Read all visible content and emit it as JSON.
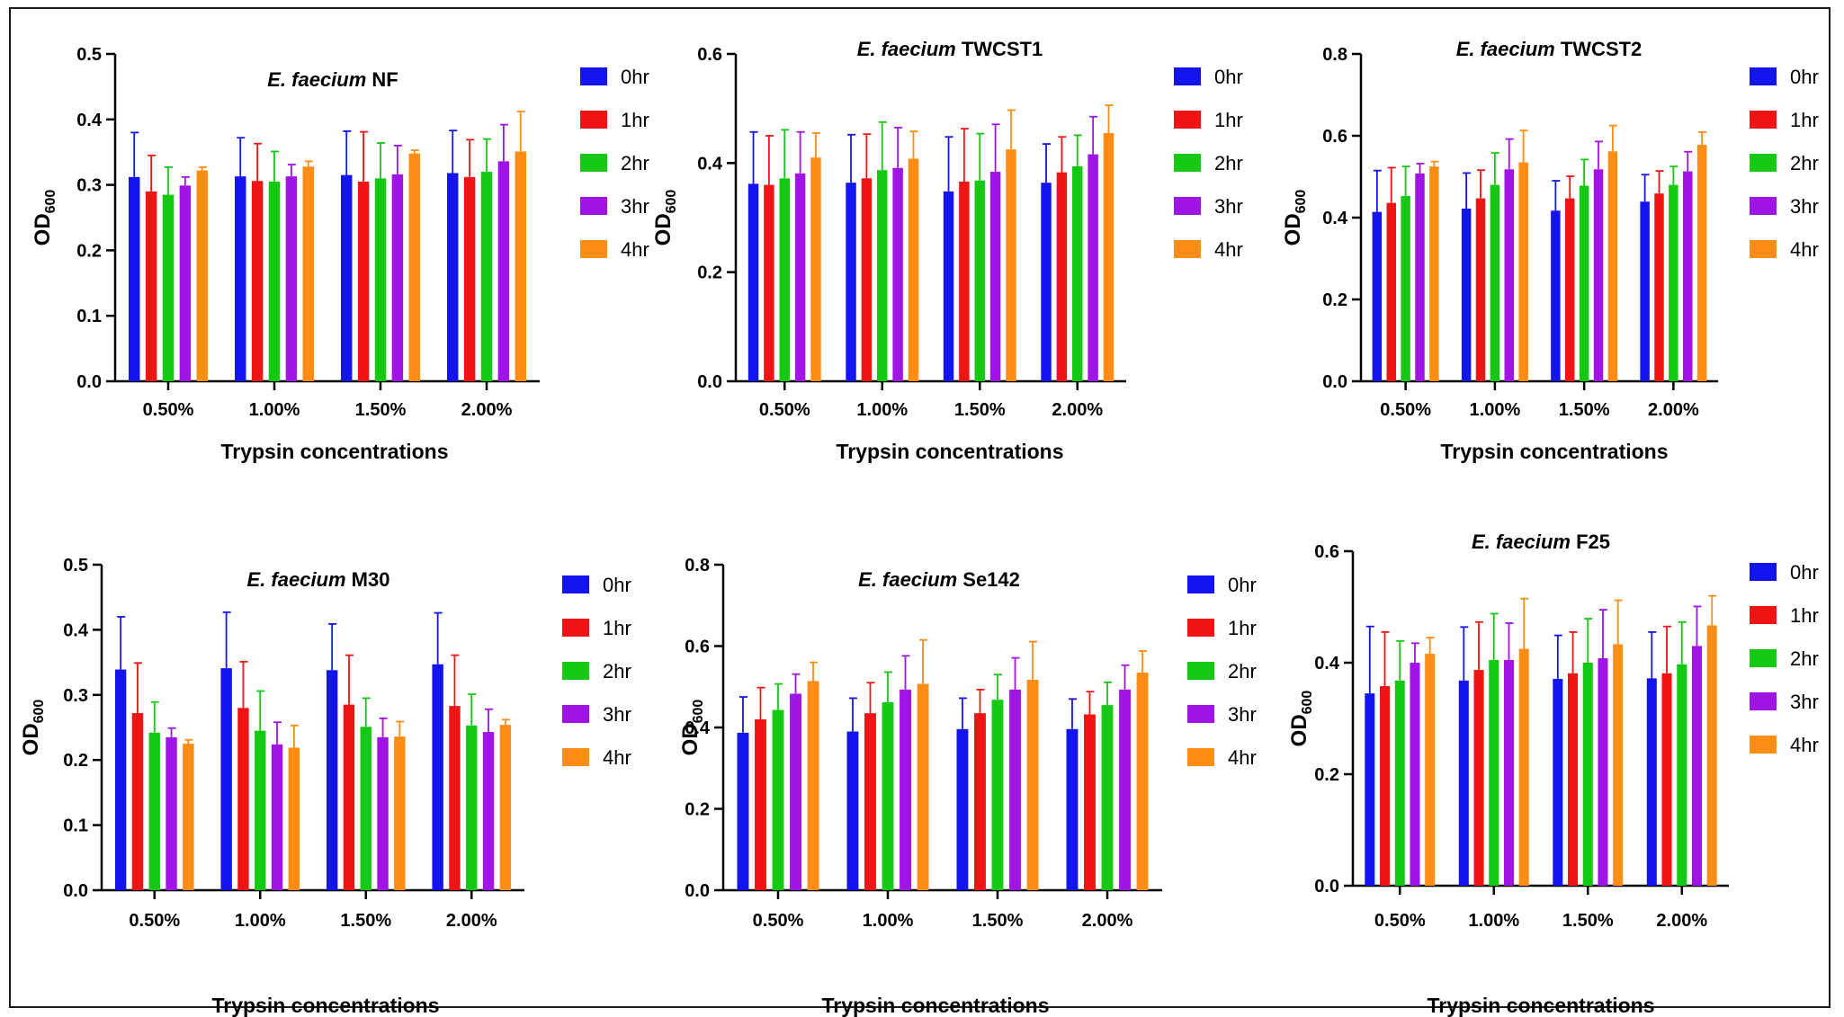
{
  "figure": {
    "type": "grouped bar chart panel grid"
  },
  "legend": {
    "items": [
      "0hr",
      "1hr",
      "2hr",
      "3hr",
      "4hr"
    ],
    "colors": [
      "#1414f0",
      "#f01414",
      "#14c814",
      "#a014e6",
      "#ff8c14"
    ]
  },
  "chart_data": [
    {
      "type": "bar",
      "title_italic": "E. faecium",
      "title_strain": "NF",
      "xlabel": "Trypsin concentrations",
      "ylabel": "OD",
      "ylabel_sub": "600",
      "ylim": [
        0,
        0.5
      ],
      "yticks": [
        "0.0",
        "0.1",
        "0.2",
        "0.3",
        "0.4",
        "0.5"
      ],
      "categories": [
        "0.50%",
        "1.00%",
        "1.50%",
        "2.00%"
      ],
      "series": [
        {
          "name": "0hr",
          "values": [
            0.312,
            0.313,
            0.315,
            0.318
          ],
          "errors": [
            0.068,
            0.059,
            0.067,
            0.065
          ]
        },
        {
          "name": "1hr",
          "values": [
            0.29,
            0.306,
            0.305,
            0.312
          ],
          "errors": [
            0.055,
            0.057,
            0.076,
            0.057
          ]
        },
        {
          "name": "2hr",
          "values": [
            0.285,
            0.305,
            0.31,
            0.32
          ],
          "errors": [
            0.042,
            0.046,
            0.054,
            0.05
          ]
        },
        {
          "name": "3hr",
          "values": [
            0.299,
            0.313,
            0.316,
            0.336
          ],
          "errors": [
            0.013,
            0.018,
            0.044,
            0.056
          ]
        },
        {
          "name": "4hr",
          "values": [
            0.322,
            0.328,
            0.348,
            0.351
          ],
          "errors": [
            0.005,
            0.008,
            0.005,
            0.061
          ]
        }
      ]
    },
    {
      "type": "bar",
      "title_italic": "E. faecium",
      "title_strain": "TWCST1",
      "xlabel": "Trypsin concentrations",
      "ylabel": "OD",
      "ylabel_sub": "600",
      "ylim": [
        0,
        0.6
      ],
      "yticks": [
        "0.0",
        "0.2",
        "0.4",
        "0.6"
      ],
      "categories": [
        "0.50%",
        "1.00%",
        "1.50%",
        "2.00%"
      ],
      "series": [
        {
          "name": "0hr",
          "values": [
            0.362,
            0.364,
            0.348,
            0.364
          ],
          "errors": [
            0.095,
            0.088,
            0.1,
            0.071
          ]
        },
        {
          "name": "1hr",
          "values": [
            0.36,
            0.372,
            0.366,
            0.383
          ],
          "errors": [
            0.09,
            0.081,
            0.097,
            0.065
          ]
        },
        {
          "name": "2hr",
          "values": [
            0.372,
            0.387,
            0.368,
            0.394
          ],
          "errors": [
            0.089,
            0.088,
            0.086,
            0.057
          ]
        },
        {
          "name": "3hr",
          "values": [
            0.381,
            0.391,
            0.384,
            0.416
          ],
          "errors": [
            0.076,
            0.074,
            0.087,
            0.069
          ]
        },
        {
          "name": "4hr",
          "values": [
            0.41,
            0.408,
            0.425,
            0.455
          ],
          "errors": [
            0.045,
            0.05,
            0.072,
            0.051
          ]
        }
      ]
    },
    {
      "type": "bar",
      "title_italic": "E. faecium",
      "title_strain": "TWCST2",
      "xlabel": "Trypsin concentrations",
      "ylabel": "OD",
      "ylabel_sub": "600",
      "ylim": [
        0,
        0.8
      ],
      "yticks": [
        "0.0",
        "0.2",
        "0.4",
        "0.6",
        "0.8"
      ],
      "categories": [
        "0.50%",
        "1.00%",
        "1.50%",
        "2.00%"
      ],
      "series": [
        {
          "name": "0hr",
          "values": [
            0.414,
            0.422,
            0.417,
            0.439
          ],
          "errors": [
            0.101,
            0.087,
            0.073,
            0.066
          ]
        },
        {
          "name": "1hr",
          "values": [
            0.436,
            0.447,
            0.447,
            0.459
          ],
          "errors": [
            0.086,
            0.069,
            0.054,
            0.055
          ]
        },
        {
          "name": "2hr",
          "values": [
            0.453,
            0.48,
            0.478,
            0.48
          ],
          "errors": [
            0.072,
            0.078,
            0.064,
            0.045
          ]
        },
        {
          "name": "3hr",
          "values": [
            0.508,
            0.518,
            0.518,
            0.513
          ],
          "errors": [
            0.024,
            0.074,
            0.068,
            0.048
          ]
        },
        {
          "name": "4hr",
          "values": [
            0.525,
            0.535,
            0.562,
            0.578
          ],
          "errors": [
            0.012,
            0.078,
            0.063,
            0.031
          ]
        }
      ]
    },
    {
      "type": "bar",
      "title_italic": "E. faecium",
      "title_strain": "M30",
      "xlabel": "Trypsin concentrations",
      "ylabel": "OD",
      "ylabel_sub": "600",
      "ylim": [
        0,
        0.5
      ],
      "yticks": [
        "0.0",
        "0.1",
        "0.2",
        "0.3",
        "0.4",
        "0.5"
      ],
      "categories": [
        "0.50%",
        "1.00%",
        "1.50%",
        "2.00%"
      ],
      "series": [
        {
          "name": "0hr",
          "values": [
            0.339,
            0.341,
            0.338,
            0.347
          ],
          "errors": [
            0.081,
            0.086,
            0.071,
            0.079
          ]
        },
        {
          "name": "1hr",
          "values": [
            0.272,
            0.28,
            0.285,
            0.283
          ],
          "errors": [
            0.077,
            0.071,
            0.076,
            0.078
          ]
        },
        {
          "name": "2hr",
          "values": [
            0.242,
            0.245,
            0.251,
            0.253
          ],
          "errors": [
            0.047,
            0.061,
            0.044,
            0.048
          ]
        },
        {
          "name": "3hr",
          "values": [
            0.235,
            0.224,
            0.235,
            0.243
          ],
          "errors": [
            0.014,
            0.034,
            0.029,
            0.035
          ]
        },
        {
          "name": "4hr",
          "values": [
            0.225,
            0.219,
            0.236,
            0.254
          ],
          "errors": [
            0.006,
            0.034,
            0.023,
            0.008
          ]
        }
      ]
    },
    {
      "type": "bar",
      "title_italic": "E. faecium",
      "title_strain": "Se142",
      "xlabel": "Trypsin concentrations",
      "ylabel": "OD",
      "ylabel_sub": "600",
      "ylim": [
        0,
        0.8
      ],
      "yticks": [
        "0.0",
        "0.2",
        "0.4",
        "0.6",
        "0.8"
      ],
      "categories": [
        "0.50%",
        "1.00%",
        "1.50%",
        "2.00%"
      ],
      "series": [
        {
          "name": "0hr",
          "values": [
            0.387,
            0.39,
            0.396,
            0.396
          ],
          "errors": [
            0.088,
            0.082,
            0.076,
            0.074
          ]
        },
        {
          "name": "1hr",
          "values": [
            0.42,
            0.435,
            0.435,
            0.432
          ],
          "errors": [
            0.078,
            0.075,
            0.058,
            0.056
          ]
        },
        {
          "name": "2hr",
          "values": [
            0.443,
            0.462,
            0.468,
            0.455
          ],
          "errors": [
            0.064,
            0.074,
            0.062,
            0.056
          ]
        },
        {
          "name": "3hr",
          "values": [
            0.483,
            0.493,
            0.493,
            0.493
          ],
          "errors": [
            0.048,
            0.083,
            0.078,
            0.06
          ]
        },
        {
          "name": "4hr",
          "values": [
            0.514,
            0.507,
            0.517,
            0.535
          ],
          "errors": [
            0.046,
            0.108,
            0.094,
            0.053
          ]
        }
      ]
    },
    {
      "type": "bar",
      "title_italic": "E. faecium",
      "title_strain": "F25",
      "xlabel": "Trypsin concentrations",
      "ylabel": "OD",
      "ylabel_sub": "600",
      "ylim": [
        0,
        0.6
      ],
      "yticks": [
        "0.0",
        "0.2",
        "0.4",
        "0.6"
      ],
      "categories": [
        "0.50%",
        "1.00%",
        "1.50%",
        "2.00%"
      ],
      "series": [
        {
          "name": "0hr",
          "values": [
            0.345,
            0.368,
            0.371,
            0.372
          ],
          "errors": [
            0.12,
            0.096,
            0.078,
            0.083
          ]
        },
        {
          "name": "1hr",
          "values": [
            0.358,
            0.387,
            0.381,
            0.381
          ],
          "errors": [
            0.097,
            0.086,
            0.074,
            0.084
          ]
        },
        {
          "name": "2hr",
          "values": [
            0.368,
            0.405,
            0.4,
            0.397
          ],
          "errors": [
            0.071,
            0.083,
            0.079,
            0.076
          ]
        },
        {
          "name": "3hr",
          "values": [
            0.4,
            0.405,
            0.408,
            0.43
          ],
          "errors": [
            0.035,
            0.066,
            0.087,
            0.071
          ]
        },
        {
          "name": "4hr",
          "values": [
            0.416,
            0.425,
            0.433,
            0.467
          ],
          "errors": [
            0.029,
            0.09,
            0.079,
            0.053
          ]
        }
      ]
    }
  ]
}
